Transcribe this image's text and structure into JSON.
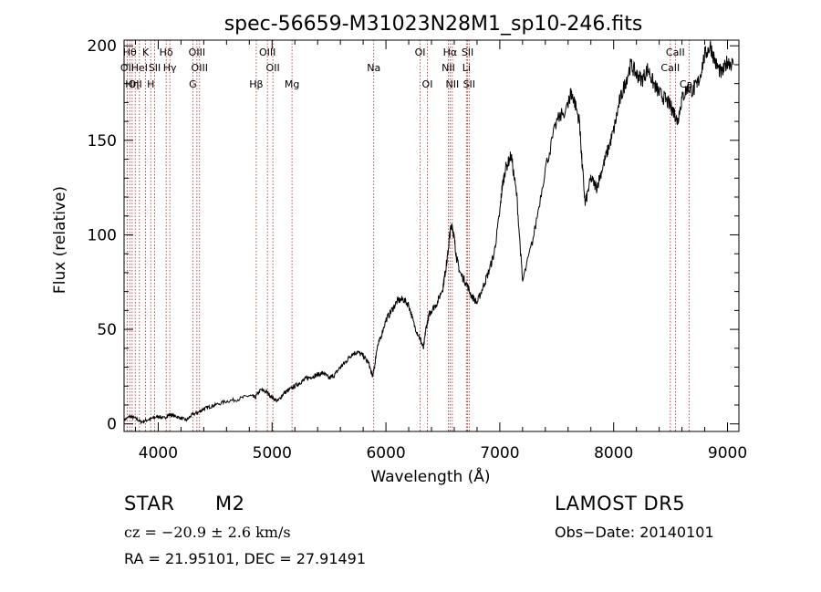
{
  "chart_data": {
    "type": "line",
    "title": "spec-56659-M31023N28M1_sp10-246.fits",
    "xlabel": "Wavelength (Å)",
    "ylabel": "Flux (relative)",
    "xlim": [
      3700,
      9100
    ],
    "ylim": [
      -4,
      203
    ],
    "xticks": [
      4000,
      5000,
      6000,
      7000,
      8000,
      9000
    ],
    "yticks": [
      0,
      50,
      100,
      150,
      200
    ],
    "grid": false,
    "line_color": "#000000",
    "marker_color": "#b22222",
    "series": [
      {
        "x": [
          3700,
          3750,
          3800,
          3850,
          3900,
          3950,
          4000,
          4050,
          4100,
          4150,
          4200,
          4250,
          4300,
          4350,
          4400,
          4450,
          4500,
          4600,
          4700,
          4800,
          4850,
          4900,
          4950,
          5000,
          5050,
          5100,
          5150,
          5200,
          5250,
          5300,
          5350,
          5400,
          5450,
          5500,
          5550,
          5600,
          5650,
          5700,
          5750,
          5800,
          5850,
          5880,
          5900,
          5920,
          5950,
          6000,
          6050,
          6100,
          6150,
          6200,
          6250,
          6300,
          6330,
          6350,
          6380,
          6400,
          6450,
          6500,
          6520,
          6540,
          6560,
          6580,
          6600,
          6620,
          6650,
          6700,
          6750,
          6800,
          6850,
          6900,
          6950,
          7000,
          7020,
          7050,
          7100,
          7150,
          7200,
          7300,
          7400,
          7500,
          7600,
          7620,
          7650,
          7700,
          7720,
          7750,
          7800,
          7850,
          7900,
          7950,
          8000,
          8050,
          8100,
          8150,
          8200,
          8250,
          8300,
          8350,
          8400,
          8450,
          8500,
          8530,
          8560,
          8600,
          8650,
          8700,
          8750,
          8800,
          8850,
          8900,
          8950,
          9000,
          9050
        ],
        "y": [
          2,
          4,
          3,
          1,
          2,
          3,
          4,
          3,
          5,
          4,
          3,
          2,
          5,
          6,
          8,
          9,
          10,
          12,
          13,
          15,
          14,
          18,
          17,
          14,
          12,
          16,
          18,
          20,
          22,
          24,
          25,
          26,
          27,
          24,
          26,
          30,
          33,
          37,
          38,
          36,
          32,
          25,
          30,
          40,
          45,
          55,
          60,
          65,
          66,
          63,
          52,
          45,
          40,
          50,
          58,
          60,
          64,
          72,
          80,
          88,
          100,
          106,
          98,
          88,
          80,
          75,
          68,
          64,
          72,
          80,
          90,
          112,
          125,
          135,
          142,
          120,
          75,
          100,
          135,
          160,
          168,
          175,
          172,
          160,
          140,
          116,
          130,
          125,
          135,
          145,
          155,
          170,
          180,
          190,
          185,
          182,
          188,
          180,
          175,
          172,
          168,
          165,
          160,
          172,
          178,
          176,
          182,
          195,
          200,
          190,
          185,
          192,
          190
        ]
      }
    ],
    "lines": [
      {
        "x": 3728,
        "label": "OII",
        "row": 2
      },
      {
        "x": 3750,
        "label": "Hθ",
        "row": 1
      },
      {
        "x": 3771,
        "label": "Hη",
        "row": 3
      },
      {
        "x": 3798,
        "label": "OII",
        "row": 3
      },
      {
        "x": 3835,
        "label": "HeI",
        "row": 2
      },
      {
        "x": 3889,
        "label": "K",
        "row": 1
      },
      {
        "x": 3934,
        "label": "H",
        "row": 3
      },
      {
        "x": 3969,
        "label": "SII",
        "row": 2
      },
      {
        "x": 4070,
        "label": "Hδ",
        "row": 1
      },
      {
        "x": 4102,
        "label": "Hγ",
        "row": 2
      },
      {
        "x": 4304,
        "label": "G",
        "row": 3
      },
      {
        "x": 4340,
        "label": "OIII",
        "row": 1
      },
      {
        "x": 4363,
        "label": "OIII",
        "row": 2
      },
      {
        "x": 4861,
        "label": "Hβ",
        "row": 3
      },
      {
        "x": 4959,
        "label": "OIII",
        "row": 1
      },
      {
        "x": 5007,
        "label": "OII",
        "row": 2
      },
      {
        "x": 5175,
        "label": "Mg",
        "row": 3
      },
      {
        "x": 5893,
        "label": "Na",
        "row": 2
      },
      {
        "x": 6300,
        "label": "OI",
        "row": 1
      },
      {
        "x": 6364,
        "label": "OI",
        "row": 3
      },
      {
        "x": 6548,
        "label": "NII",
        "row": 2
      },
      {
        "x": 6563,
        "label": "Hα",
        "row": 1
      },
      {
        "x": 6583,
        "label": "NII",
        "row": 3
      },
      {
        "x": 6707,
        "label": "Li",
        "row": 2
      },
      {
        "x": 6717,
        "label": "SII",
        "row": 1
      },
      {
        "x": 6731,
        "label": "SII",
        "row": 3
      },
      {
        "x": 8498,
        "label": "CaII",
        "row": 2
      },
      {
        "x": 8542,
        "label": "CaII",
        "row": 1
      },
      {
        "x": 8662,
        "label": "CaII",
        "row": 3
      }
    ]
  },
  "info": {
    "class": "STAR",
    "subclass": "M2",
    "survey": "LAMOST DR5",
    "redshift": "cz = −20.9 ± 2.6 km/s",
    "obs_date": "Obs−Date: 20140101",
    "coords": "RA =  21.95101, DEC =  27.91491"
  }
}
